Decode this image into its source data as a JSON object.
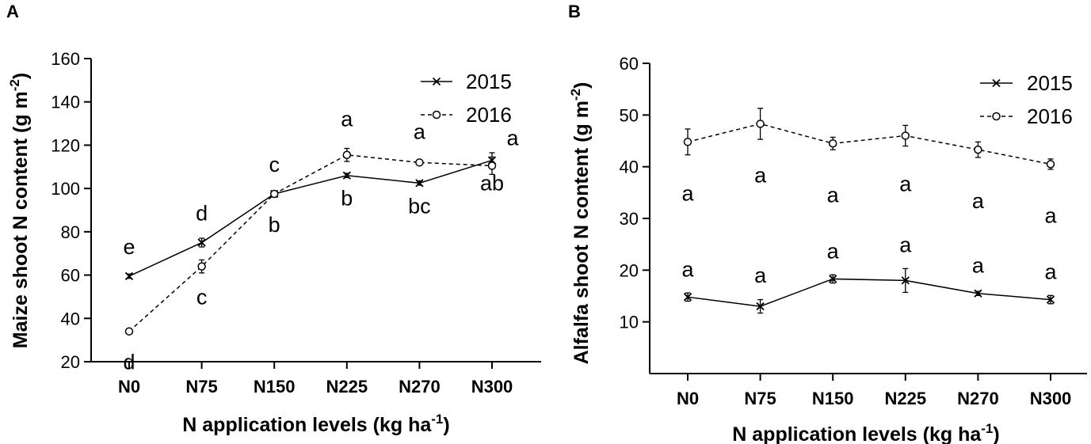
{
  "chart_data": [
    {
      "type": "line",
      "panel": "A",
      "categories": [
        "N0",
        "N75",
        "N150",
        "N225",
        "N270",
        "N300"
      ],
      "xlabel": "N application levels (kg ha",
      "xlabel_sup": "-1",
      "xlabel_end": ")",
      "ylabel": "Maize shoot N content (g m",
      "ylabel_sup": "-2",
      "ylabel_end": ")",
      "ylim": [
        20,
        160
      ],
      "yticks": [
        20,
        40,
        60,
        80,
        100,
        120,
        140,
        160
      ],
      "legend_position": "top-right",
      "series": [
        {
          "name": "2015",
          "style": "solid",
          "marker": "x",
          "values": [
            59.5,
            75,
            97.5,
            106,
            102.5,
            113
          ],
          "errors": [
            1,
            2,
            1,
            1,
            1,
            3.5
          ],
          "letters": [
            "e",
            "d",
            "c",
            "b",
            "bc",
            "ab"
          ]
        },
        {
          "name": "2016",
          "style": "dashed",
          "marker": "circle",
          "values": [
            34,
            64,
            97.5,
            115.5,
            112,
            110.5
          ],
          "errors": [
            1,
            3,
            1,
            3,
            1,
            4
          ],
          "letters": [
            "d",
            "c",
            "b",
            "a",
            "a",
            "a"
          ]
        }
      ]
    },
    {
      "type": "line",
      "panel": "B",
      "categories": [
        "N0",
        "N75",
        "N150",
        "N225",
        "N270",
        "N300"
      ],
      "xlabel": "N application levels (kg ha",
      "xlabel_sup": "-1",
      "xlabel_end": ")",
      "ylabel": "Alfalfa shoot N content (g m",
      "ylabel_sup": "-2",
      "ylabel_end": ")",
      "ylim": [
        0,
        60
      ],
      "yticks": [
        10,
        20,
        30,
        40,
        50,
        60
      ],
      "legend_position": "top-right",
      "series": [
        {
          "name": "2015",
          "style": "solid",
          "marker": "x",
          "values": [
            14.8,
            13,
            18.3,
            18,
            15.5,
            14.3
          ],
          "errors": [
            0.8,
            1.3,
            0.8,
            2.3,
            0.4,
            0.8
          ],
          "letters": [
            "a",
            "a",
            "a",
            "a",
            "a",
            "a"
          ]
        },
        {
          "name": "2016",
          "style": "dashed",
          "marker": "circle",
          "values": [
            44.8,
            48.3,
            44.5,
            46,
            43.3,
            40.5
          ],
          "errors": [
            2.5,
            3,
            1.2,
            2,
            1.5,
            1
          ],
          "letters": [
            "a",
            "a",
            "a",
            "a",
            "a",
            "a"
          ]
        }
      ]
    }
  ]
}
